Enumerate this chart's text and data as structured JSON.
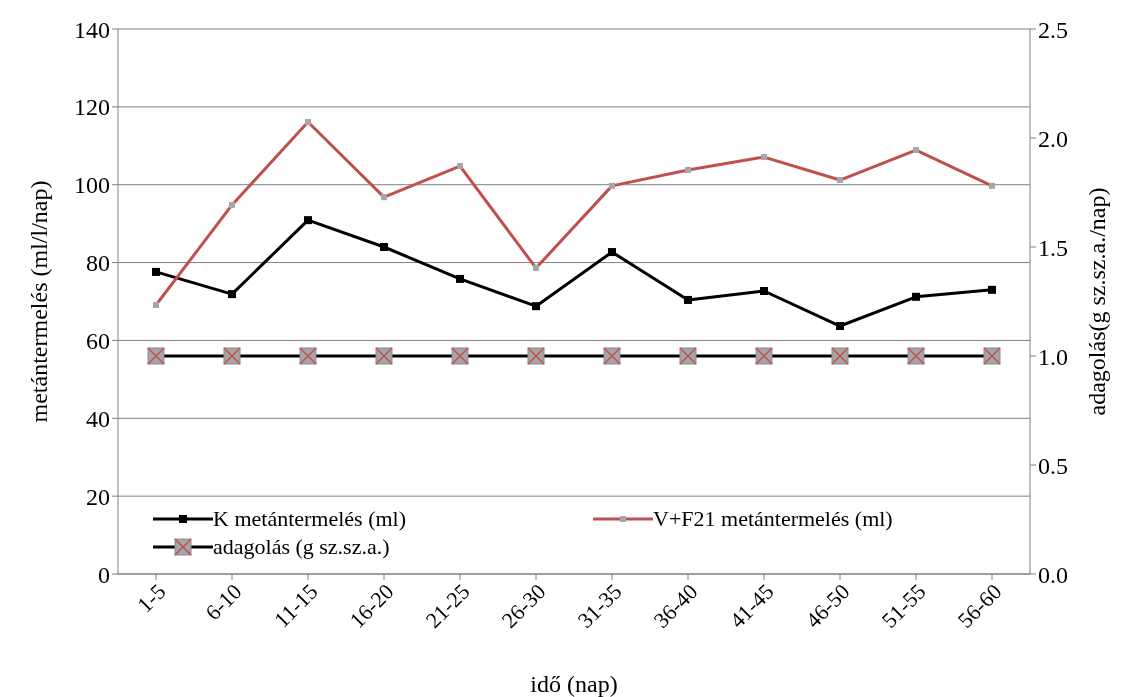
{
  "chart_data": {
    "type": "line",
    "xlabel": "idő (nap)",
    "ylabel": "metántermelés (ml/l/nap)",
    "y2label": "adagolás(g sz.sz.a./nap)",
    "categories": [
      "1-5",
      "6-10",
      "11-15",
      "16-20",
      "21-25",
      "26-30",
      "31-35",
      "36-40",
      "41-45",
      "46-50",
      "51-55",
      "56-60"
    ],
    "series": [
      {
        "name": "K metántermelés (ml)",
        "color": "#000000",
        "marker": "square",
        "values": [
          77.6,
          71.9,
          90.9,
          84.0,
          75.8,
          68.8,
          82.7,
          70.4,
          72.7,
          63.7,
          71.2,
          73.0
        ]
      },
      {
        "name": "V+F21 metántermelés (ml)",
        "color": "#c0504d",
        "marker": "square",
        "values": [
          69.1,
          94.8,
          116.1,
          96.8,
          104.8,
          78.6,
          99.7,
          103.8,
          107.1,
          101.2,
          108.9,
          99.7
        ]
      },
      {
        "name": "adagolás (g sz.sz.a.)",
        "color": "#000000",
        "marker": "square",
        "axis": "y2",
        "values": [
          1.0,
          1.0,
          1.0,
          1.0,
          1.0,
          1.0,
          1.0,
          1.0,
          1.0,
          1.0,
          1.0,
          1.0
        ]
      }
    ],
    "ylim": [
      0,
      140
    ],
    "yticks": [
      0,
      20,
      40,
      60,
      80,
      100,
      120,
      140
    ],
    "y2lim": [
      0,
      2.5
    ],
    "y2ticks": [
      {
        "value": 0,
        "label": "0.0"
      },
      {
        "value": 0.5,
        "label": "0.5"
      },
      {
        "value": 1,
        "label": "1.0"
      },
      {
        "value": 1.5,
        "label": "1.5"
      },
      {
        "value": 2,
        "label": "2.0"
      },
      {
        "value": 2.5,
        "label": "2.5"
      }
    ],
    "grid": "y",
    "legend": "bottom",
    "line_style": "solid"
  }
}
